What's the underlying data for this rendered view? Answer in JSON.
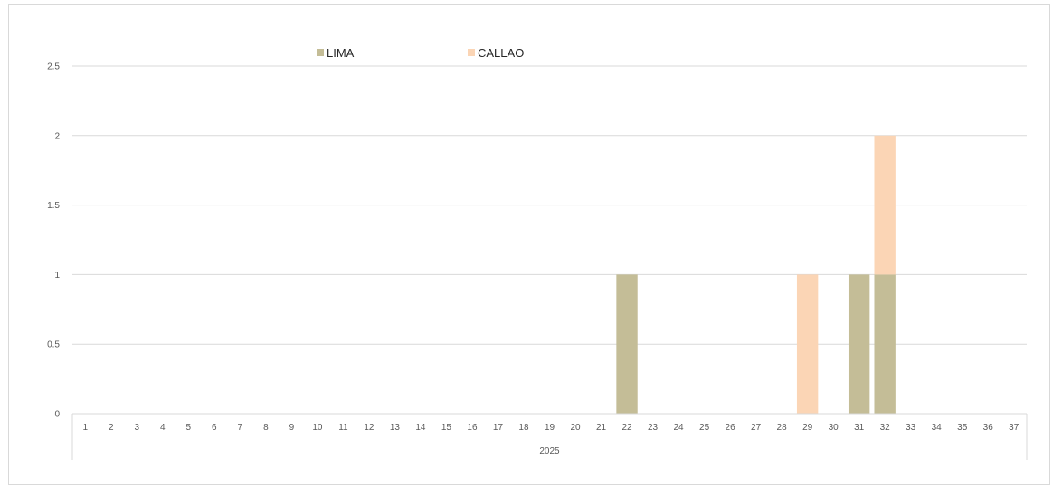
{
  "chart_data": {
    "type": "bar",
    "stacked": true,
    "categories": [
      "1",
      "2",
      "3",
      "4",
      "5",
      "6",
      "7",
      "8",
      "9",
      "10",
      "11",
      "12",
      "13",
      "14",
      "15",
      "16",
      "17",
      "18",
      "19",
      "20",
      "21",
      "22",
      "23",
      "24",
      "25",
      "26",
      "27",
      "28",
      "29",
      "30",
      "31",
      "32",
      "33",
      "34",
      "35",
      "36",
      "37"
    ],
    "group_label": "2025",
    "series": [
      {
        "name": "LIMA",
        "color": "#c4bd97",
        "values": [
          0,
          0,
          0,
          0,
          0,
          0,
          0,
          0,
          0,
          0,
          0,
          0,
          0,
          0,
          0,
          0,
          0,
          0,
          0,
          0,
          0,
          1,
          0,
          0,
          0,
          0,
          0,
          0,
          0,
          0,
          1,
          1,
          0,
          0,
          0,
          0,
          0
        ]
      },
      {
        "name": "CALLAO",
        "color": "#fbd5b5",
        "values": [
          0,
          0,
          0,
          0,
          0,
          0,
          0,
          0,
          0,
          0,
          0,
          0,
          0,
          0,
          0,
          0,
          0,
          0,
          0,
          0,
          0,
          0,
          0,
          0,
          0,
          0,
          0,
          0,
          1,
          0,
          0,
          1,
          0,
          0,
          0,
          0,
          0
        ]
      }
    ],
    "y_ticks": [
      "0",
      "0.5",
      "1",
      "1.5",
      "2",
      "2.5"
    ],
    "ylim": [
      0,
      2.5
    ],
    "grid": true,
    "legend_position": "top"
  }
}
